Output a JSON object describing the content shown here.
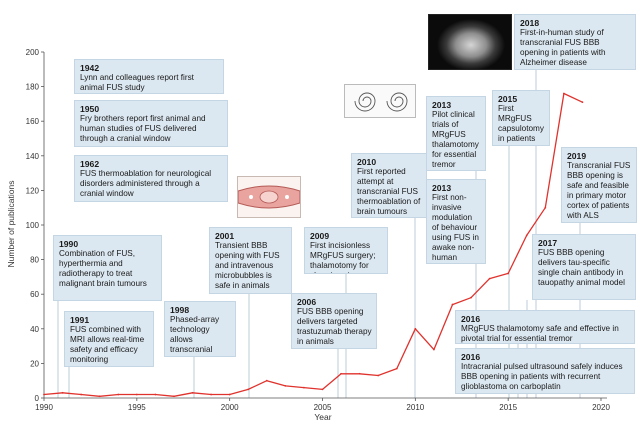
{
  "chart_data": {
    "type": "line",
    "title": "",
    "xlabel": "Year",
    "ylabel": "Number of publications",
    "xlim": [
      1990,
      2020
    ],
    "ylim": [
      0,
      200
    ],
    "xticks": [
      1990,
      1995,
      2000,
      2005,
      2010,
      2015,
      2020
    ],
    "yticks": [
      0,
      20,
      40,
      60,
      80,
      100,
      120,
      140,
      160,
      180,
      200
    ],
    "grid": false,
    "line_color": "#e0322d",
    "x": [
      1990,
      1991,
      1992,
      1993,
      1994,
      1995,
      1996,
      1997,
      1998,
      1999,
      2000,
      2001,
      2002,
      2003,
      2004,
      2005,
      2006,
      2007,
      2008,
      2009,
      2010,
      2011,
      2012,
      2013,
      2014,
      2015,
      2016,
      2017,
      2018,
      2019
    ],
    "values": [
      2,
      3,
      2,
      1,
      2,
      2,
      2,
      1,
      3,
      2,
      2,
      5,
      10,
      7,
      6,
      5,
      14,
      14,
      13,
      17,
      40,
      28,
      54,
      58,
      69,
      72,
      94,
      110,
      176,
      171
    ]
  },
  "annotations": [
    {
      "year": "1942",
      "text": "Lynn and colleagues report first animal FUS study"
    },
    {
      "year": "1950",
      "text": "Fry brothers report first animal and human studies of FUS delivered through a cranial window"
    },
    {
      "year": "1962",
      "text": "FUS thermoablation for neurological disorders administered through a cranial window"
    },
    {
      "year": "1990",
      "text": "Combination of FUS, hyperthermia and radiotherapy to treat malignant brain tumours"
    },
    {
      "year": "1991",
      "text": "FUS combined with MRI allows real-time safety and efficacy monitoring"
    },
    {
      "year": "1998",
      "text": "Phased-array technology allows transcranial applications"
    },
    {
      "year": "2001",
      "text": "Transient BBB opening with FUS and intravenous microbubbles is safe in animals"
    },
    {
      "year": "2006",
      "text": "FUS BBB opening delivers targeted trastuzumab therapy in animals"
    },
    {
      "year": "2009",
      "text": "First incisionless MRgFUS surgery; thalamotomy for chronic pain"
    },
    {
      "year": "2010",
      "text": "First reported attempt at transcranial FUS thermoablation of brain tumours"
    },
    {
      "year": "2013",
      "text": "Pilot clinical trials of MRgFUS thalamotomy for essential tremor"
    },
    {
      "year": "2013",
      "text": "First non-invasive modulation of behaviour using FUS in awake non-human primates"
    },
    {
      "year": "2015",
      "text": "First MRgFUS capsulotomy in patients with OCD"
    },
    {
      "year": "2018",
      "text": "First-in-human study of transcranial FUS BBB opening in patients with Alzheimer disease"
    },
    {
      "year": "2019",
      "text": "Transcranial FUS BBB opening is safe and feasible in primary motor cortex of patients with ALS"
    },
    {
      "year": "2017",
      "text": "FUS BBB opening delivers tau-specific single chain antibody in tauopathy animal model"
    },
    {
      "year": "2016",
      "text": "MRgFUS thalamotomy safe and effective in pivotal trial for essential tremor"
    },
    {
      "year": "2016",
      "text": "Intracranial pulsed ultrasound safely induces BBB opening in patients with recurrent glioblastoma on carboplatin"
    }
  ]
}
